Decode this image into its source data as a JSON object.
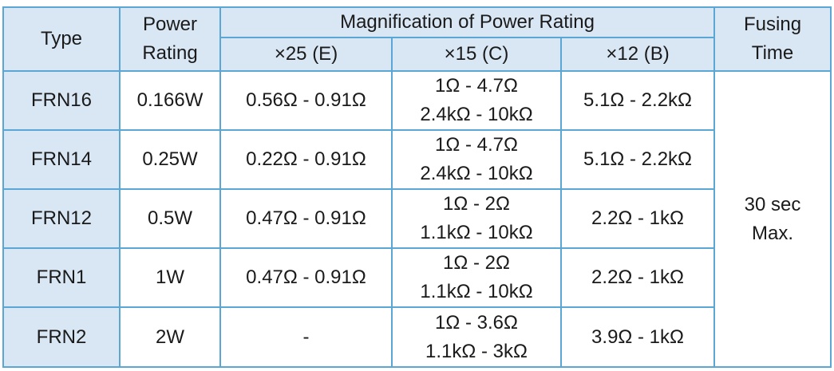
{
  "table": {
    "headers": {
      "type": "Type",
      "power_rating_line1": "Power",
      "power_rating_line2": "Rating",
      "magnification": "Magnification of Power Rating",
      "sub": [
        "×25 (E)",
        "×15 (C)",
        "×12 (B)"
      ],
      "fusing_line1": "Fusing",
      "fusing_line2": "Time"
    },
    "rows": [
      {
        "type": "FRN16",
        "power": "0.166W",
        "x25": "0.56Ω - 0.91Ω",
        "x15": [
          "1Ω - 4.7Ω",
          "2.4kΩ - 10kΩ"
        ],
        "x12": "5.1Ω - 2.2kΩ"
      },
      {
        "type": "FRN14",
        "power": "0.25W",
        "x25": "0.22Ω - 0.91Ω",
        "x15": [
          "1Ω - 4.7Ω",
          "2.4kΩ - 10kΩ"
        ],
        "x12": "5.1Ω - 2.2kΩ"
      },
      {
        "type": "FRN12",
        "power": "0.5W",
        "x25": "0.47Ω - 0.91Ω",
        "x15": [
          "1Ω - 2Ω",
          "1.1kΩ - 10kΩ"
        ],
        "x12": "2.2Ω - 1kΩ"
      },
      {
        "type": "FRN1",
        "power": "1W",
        "x25": "0.47Ω - 0.91Ω",
        "x15": [
          "1Ω - 2Ω",
          "1.1kΩ - 10kΩ"
        ],
        "x12": "2.2Ω - 1kΩ"
      },
      {
        "type": "FRN2",
        "power": "2W",
        "x25": "-",
        "x15": [
          "1Ω - 3.6Ω",
          "1.1kΩ - 3kΩ"
        ],
        "x12": "3.9Ω - 1kΩ"
      }
    ],
    "fusing_time": [
      "30 sec",
      "Max."
    ]
  },
  "colors": {
    "header_bg": "#d9e7f5",
    "border": "#5aa7d6",
    "text": "#1a1a1a"
  }
}
